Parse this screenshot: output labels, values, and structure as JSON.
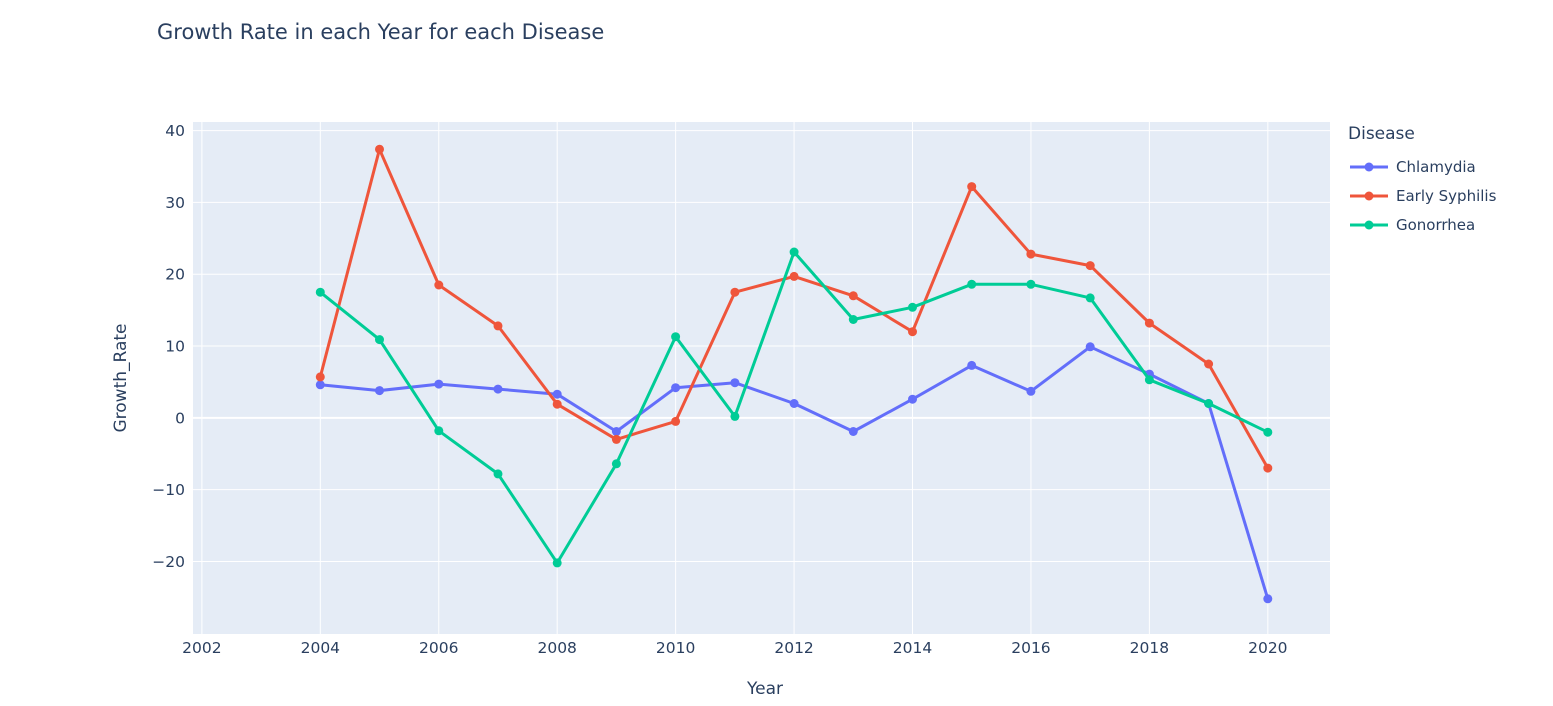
{
  "page": {
    "title": "Growth Rate in each Year for each Disease"
  },
  "chart_data": {
    "type": "line",
    "title": "Growth Rate in each Year for each Disease",
    "xlabel": "Year",
    "ylabel": "Growth_Rate",
    "legend_title": "Disease",
    "legend_position": "right",
    "grid": true,
    "plot_bg": "#e5ecf6",
    "grid_color": "#ffffff",
    "text_color": "#2a3f5f",
    "x": [
      2004,
      2005,
      2006,
      2007,
      2008,
      2009,
      2010,
      2011,
      2012,
      2013,
      2014,
      2015,
      2016,
      2017,
      2018,
      2019,
      2020
    ],
    "series": [
      {
        "name": "Chlamydia",
        "color": "#636efa",
        "values": [
          4.6,
          3.8,
          4.7,
          4.0,
          3.3,
          -1.9,
          4.2,
          4.9,
          2.0,
          -1.9,
          2.6,
          7.3,
          3.7,
          9.9,
          6.1,
          2.0,
          -25.2
        ]
      },
      {
        "name": "Early Syphilis",
        "color": "#ef553b",
        "values": [
          5.7,
          37.4,
          18.5,
          12.8,
          1.9,
          -3.0,
          -0.5,
          17.5,
          19.7,
          17.0,
          12.0,
          32.2,
          22.8,
          21.2,
          13.2,
          7.5,
          -7.0
        ]
      },
      {
        "name": "Gonorrhea",
        "color": "#00cc96",
        "values": [
          17.5,
          10.9,
          -1.8,
          -7.8,
          -20.2,
          -6.4,
          11.3,
          0.2,
          23.1,
          13.7,
          15.4,
          18.6,
          18.6,
          16.7,
          5.3,
          2.0,
          -2.0
        ]
      }
    ],
    "xticks": [
      2002,
      2004,
      2006,
      2008,
      2010,
      2012,
      2014,
      2016,
      2018,
      2020
    ],
    "yticks": [
      -20,
      -10,
      0,
      10,
      20,
      30,
      40
    ],
    "xlim": [
      2001.85,
      2021.05
    ],
    "ylim": [
      -30.1,
      41.2
    ]
  }
}
